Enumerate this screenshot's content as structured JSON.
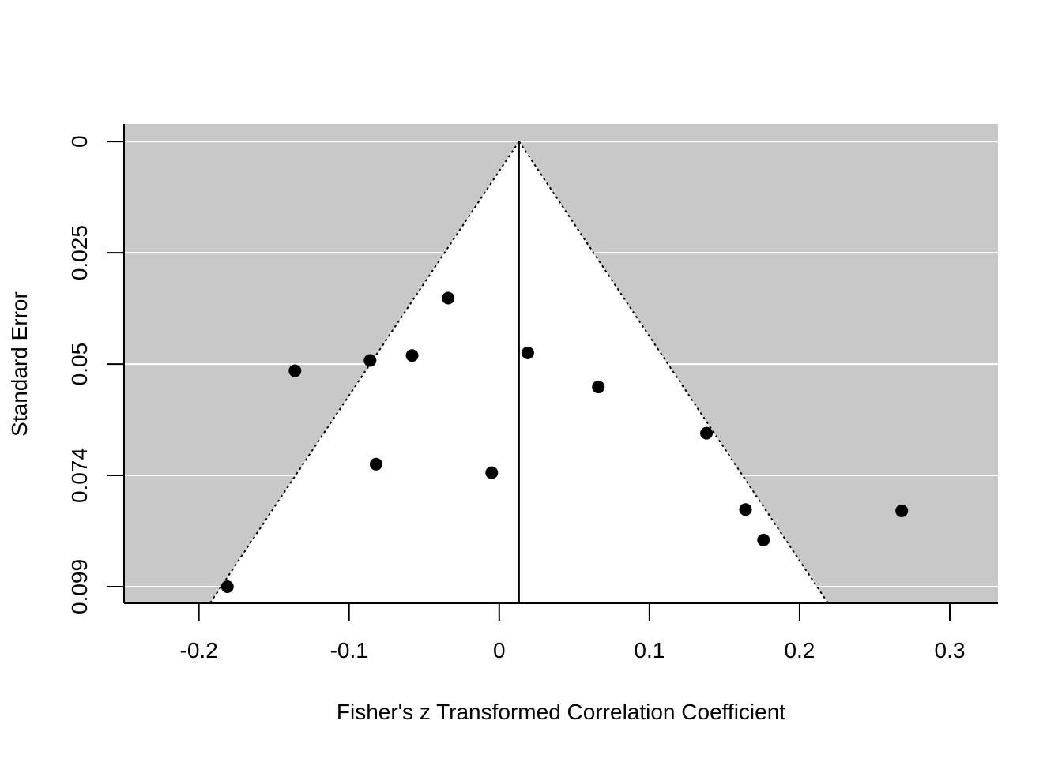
{
  "chart_data": {
    "type": "scatter",
    "subtype": "funnel",
    "title": "",
    "xlabel": "Fisher's z Transformed Correlation Coefficient",
    "ylabel": "Standard Error",
    "xlim": [
      -0.2498,
      0.3321
    ],
    "ylim": [
      0.1029,
      -0.0039
    ],
    "y_axis_inverted": true,
    "x_ticks": [
      -0.2,
      -0.1,
      0,
      0.1,
      0.2,
      0.3
    ],
    "x_tick_labels": [
      "-0.2",
      "-0.1",
      "0",
      "0.1",
      "0.2",
      "0.3"
    ],
    "y_ticks": [
      0,
      0.0248,
      0.0496,
      0.0744,
      0.0992
    ],
    "y_tick_labels": [
      "0",
      "0.025",
      "0.05",
      "0.074",
      "0.099"
    ],
    "grid": "horizontal white lines at y ticks",
    "summary_estimate": 0.0132,
    "funnel_multiplier": 2.0,
    "colors": {
      "background": "#c8c8c8",
      "funnel_fill": "#ffffff",
      "gridline": "#ffffff",
      "point": "#000000",
      "reference_line": "#000000",
      "funnel_line": "#000000"
    },
    "points": [
      {
        "x": -0.181,
        "y": 0.0992
      },
      {
        "x": -0.136,
        "y": 0.0511
      },
      {
        "x": -0.086,
        "y": 0.0488
      },
      {
        "x": -0.082,
        "y": 0.0719
      },
      {
        "x": -0.058,
        "y": 0.0477
      },
      {
        "x": -0.034,
        "y": 0.0349
      },
      {
        "x": -0.005,
        "y": 0.0738
      },
      {
        "x": 0.019,
        "y": 0.0471
      },
      {
        "x": 0.066,
        "y": 0.0547
      },
      {
        "x": 0.138,
        "y": 0.065
      },
      {
        "x": 0.164,
        "y": 0.082
      },
      {
        "x": 0.176,
        "y": 0.0888
      },
      {
        "x": 0.268,
        "y": 0.0823
      }
    ]
  }
}
